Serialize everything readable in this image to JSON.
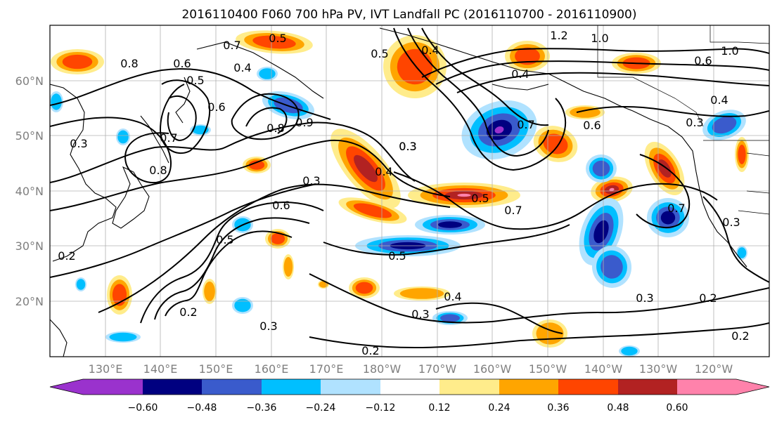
{
  "title": "2016110400 F060 700 hPa PV, IVT Landfall PC (2016110700 - 2016110900)",
  "colors": {
    "neg_060": "#9a32cd",
    "neg_048": "#000080",
    "neg_036": "#3a5bcc",
    "neg_024": "#00bfff",
    "neg_012": "#b0e2ff",
    "zero": "#ffffff",
    "pos_012": "#ffec8b",
    "pos_024": "#ffa500",
    "pos_036": "#ff4500",
    "pos_048": "#b22222",
    "pos_060": "#ff82ab"
  },
  "axes": {
    "lat_labels": [
      "60°N",
      "50°N",
      "40°N",
      "30°N",
      "20°N"
    ],
    "lon_labels": [
      "130°E",
      "140°E",
      "150°E",
      "160°E",
      "170°E",
      "180°W",
      "170°W",
      "160°W",
      "150°W",
      "140°W",
      "130°W",
      "120°W"
    ]
  },
  "colorbar": {
    "ticks": [
      "−0.60",
      "−0.48",
      "−0.36",
      "−0.24",
      "−0.12",
      "0.12",
      "0.24",
      "0.36",
      "0.48",
      "0.60"
    ]
  },
  "contour_labels": [
    "0.8",
    "0.6",
    "0.5",
    "0.7",
    "0.4",
    "0.5",
    "0.6",
    "0.7",
    "0.8",
    "0.9",
    "1.2",
    "1.0",
    "1.0",
    "0.6",
    "0.4",
    "0.3",
    "0.7",
    "0.6",
    "0.4",
    "0.3",
    "0.4",
    "0.5",
    "0.7",
    "0.5",
    "0.3",
    "0.6",
    "0.5",
    "0.2",
    "0.3",
    "0.2",
    "0.3",
    "0.4",
    "0.3",
    "0.2",
    "0.2",
    "0.3",
    "0.2",
    "0.3",
    "0.8",
    "0.4",
    "0.5",
    "0.7",
    "0.3"
  ]
}
